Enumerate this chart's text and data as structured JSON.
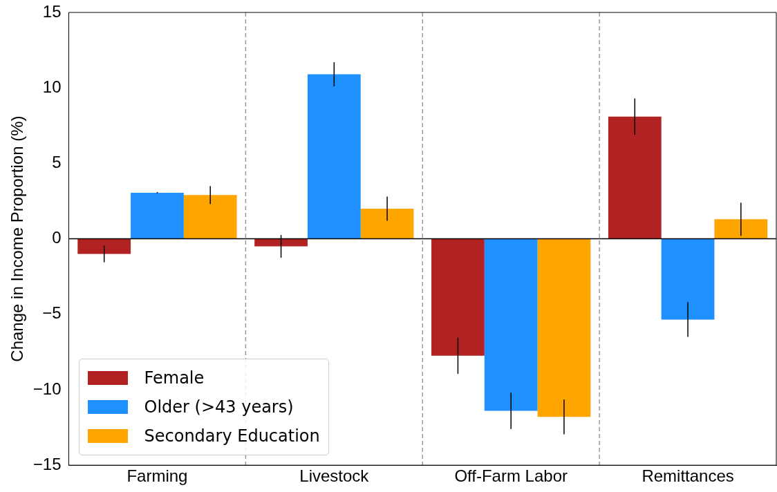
{
  "chart_data": {
    "type": "bar",
    "ylabel": "Change in Income Proportion (%)",
    "categories": [
      "Farming",
      "Livestock",
      "Off-Farm Labor",
      "Remittances"
    ],
    "series": [
      {
        "name": "Female",
        "color": "#b22222",
        "values": [
          -1.0,
          -0.5,
          -7.75,
          8.1
        ],
        "errors": [
          0.55,
          0.75,
          1.2,
          1.2
        ]
      },
      {
        "name": "Older (>43 years)",
        "color": "#1e90ff",
        "values": [
          3.05,
          10.9,
          -11.4,
          -5.35
        ],
        "errors": [
          0.05,
          0.8,
          1.2,
          1.15
        ]
      },
      {
        "name": "Secondary Education",
        "color": "#ffa500",
        "values": [
          2.9,
          2.0,
          -11.8,
          1.3
        ],
        "errors": [
          0.6,
          0.8,
          1.15,
          1.1
        ]
      }
    ],
    "ylim": [
      -15,
      15
    ],
    "yticks": [
      -15,
      -10,
      -5,
      0,
      5,
      10,
      15
    ],
    "ref_lines": [
      {
        "axis": "y",
        "value": 0,
        "color": "#000000",
        "line_style": "solid"
      }
    ],
    "grid": false,
    "legend": "bottom left"
  }
}
